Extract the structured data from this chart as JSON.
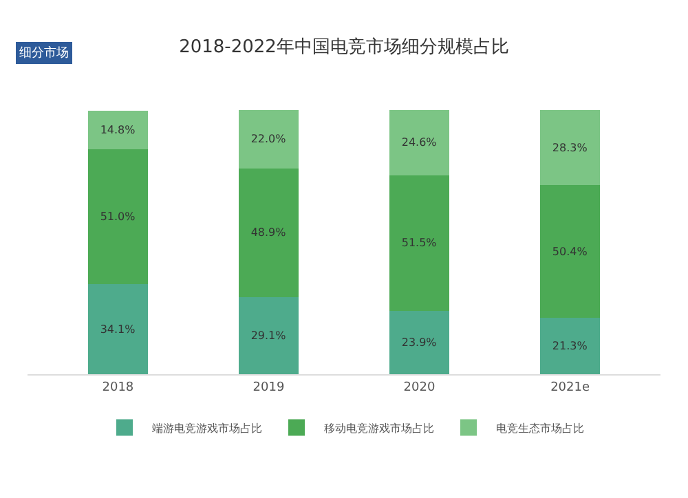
{
  "chart_data": {
    "type": "bar",
    "title": "2018-2022年中国电竞市场细分规模占比",
    "annotations": [
      "细分市场"
    ],
    "categories": [
      "2018",
      "2019",
      "2020",
      "2021e"
    ],
    "stacked": true,
    "legend": "bottom",
    "tick_labels": "x",
    "series": [
      {
        "name": "端游电竞游戏市场占比",
        "color": "#4eab8c",
        "values": [
          34.1,
          29.1,
          23.9,
          21.3
        ],
        "value_labels": [
          "34.1%",
          "29.1%",
          "23.9%",
          "21.3%"
        ]
      },
      {
        "name": "移动电竞游戏市场占比",
        "color": "#4caa55",
        "values": [
          51.0,
          48.9,
          51.5,
          50.4
        ],
        "value_labels": [
          "51.0%",
          "48.9%",
          "51.5%",
          "50.4%"
        ]
      },
      {
        "name": "电竞生态市场占比",
        "color": "#7cc585",
        "values": [
          14.8,
          22.0,
          24.6,
          28.3
        ],
        "value_labels": [
          "14.8%",
          "22.0%",
          "24.6%",
          "28.3%"
        ]
      }
    ]
  }
}
